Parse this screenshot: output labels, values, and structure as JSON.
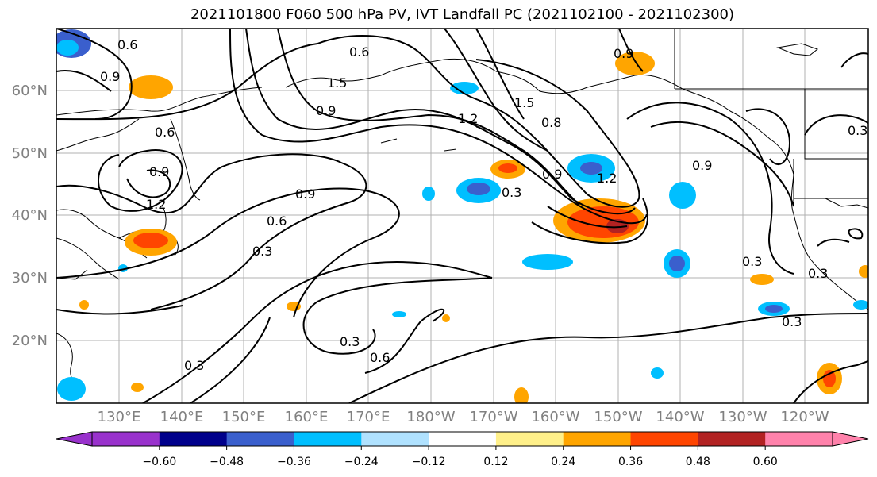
{
  "title": "2021101800 F060 500 hPa PV, IVT Landfall PC (2021102100 - 2021102300)",
  "map": {
    "lat_labels": [
      "60°N",
      "50°N",
      "40°N",
      "30°N",
      "20°N"
    ],
    "lon_labels": [
      "130°E",
      "140°E",
      "150°E",
      "160°E",
      "170°E",
      "180°W",
      "170°W",
      "160°W",
      "150°W",
      "140°W",
      "130°W",
      "120°W"
    ],
    "contour_labels": [
      "0.6",
      "0.9",
      "0.6",
      "1.5",
      "0.9",
      "1.2",
      "0.6",
      "1.5",
      "0.8",
      "0.9",
      "1.2",
      "0.9",
      "0.9",
      "1.2",
      "0.6",
      "0.3",
      "0.3",
      "0.9",
      "0.3",
      "0.3",
      "0.6",
      "0.3",
      "0.3",
      "0.3",
      "0.9",
      "0.3"
    ]
  },
  "colorbar": {
    "colors": [
      "#9932cc",
      "#00008b",
      "#3a5fcd",
      "#00bfff",
      "#b0e2ff",
      "#ffffff",
      "#fff08a",
      "#ffa500",
      "#ff4500",
      "#b22222",
      "#ff82ab"
    ],
    "tick_labels": [
      "−0.60",
      "−0.48",
      "−0.36",
      "−0.24",
      "−0.12",
      "0.12",
      "0.24",
      "0.36",
      "0.48",
      "0.60"
    ]
  }
}
